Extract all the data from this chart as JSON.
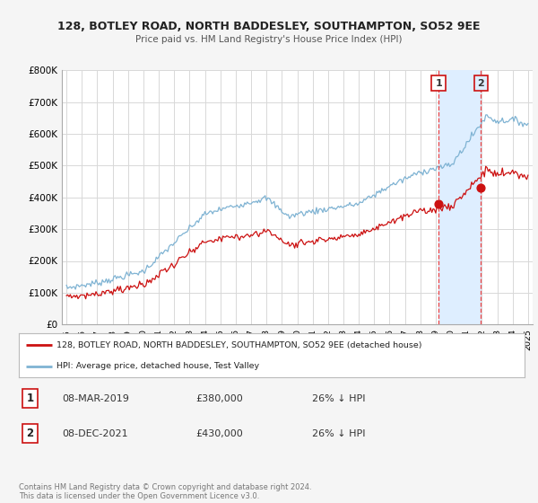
{
  "title": "128, BOTLEY ROAD, NORTH BADDESLEY, SOUTHAMPTON, SO52 9EE",
  "subtitle": "Price paid vs. HM Land Registry's House Price Index (HPI)",
  "ylim": [
    0,
    800000
  ],
  "yticks": [
    0,
    100000,
    200000,
    300000,
    400000,
    500000,
    600000,
    700000,
    800000
  ],
  "ytick_labels": [
    "£0",
    "£100K",
    "£200K",
    "£300K",
    "£400K",
    "£500K",
    "£600K",
    "£700K",
    "£800K"
  ],
  "hpi_color": "#7fb3d3",
  "price_color": "#cc1111",
  "shade_color": "#deeeff",
  "transaction1_x": 2019.19,
  "transaction1_y": 380000,
  "transaction2_x": 2021.94,
  "transaction2_y": 430000,
  "legend_label_price": "128, BOTLEY ROAD, NORTH BADDESLEY, SOUTHAMPTON, SO52 9EE (detached house)",
  "legend_label_hpi": "HPI: Average price, detached house, Test Valley",
  "footer": "Contains HM Land Registry data © Crown copyright and database right 2024.\nThis data is licensed under the Open Government Licence v3.0.",
  "table_row1": [
    "1",
    "08-MAR-2019",
    "£380,000",
    "26% ↓ HPI"
  ],
  "table_row2": [
    "2",
    "08-DEC-2021",
    "£430,000",
    "26% ↓ HPI"
  ],
  "bg_color": "#f5f5f5",
  "plot_bg": "#ffffff",
  "grid_color": "#d8d8d8",
  "xlim_left": 1994.7,
  "xlim_right": 2025.3
}
